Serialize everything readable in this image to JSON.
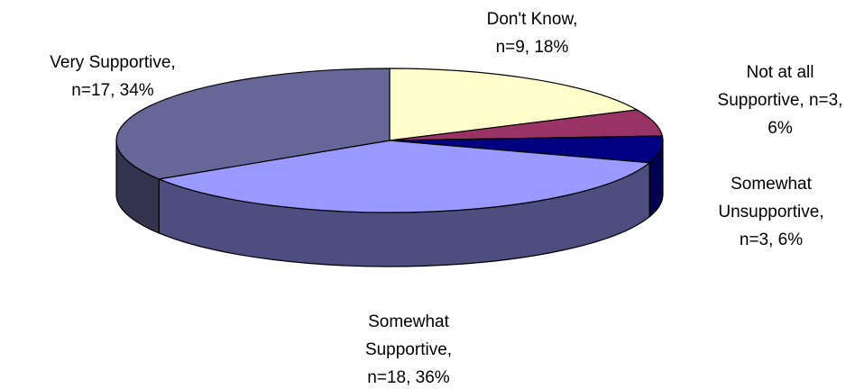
{
  "chart_data": {
    "type": "pie",
    "title": "",
    "slices": [
      {
        "label_lines": [
          "Don't Know,",
          "n=9, 18%"
        ],
        "n": 9,
        "percent": 18,
        "color": "#ffffcc",
        "side_color": "#cccc99"
      },
      {
        "label_lines": [
          "Not at all",
          "Supportive, n=3,",
          "6%"
        ],
        "n": 3,
        "percent": 6,
        "color": "#993366",
        "side_color": "#661f44"
      },
      {
        "label_lines": [
          "Somewhat",
          "Unsupportive,",
          "n=3, 6%"
        ],
        "n": 3,
        "percent": 6,
        "color": "#000080",
        "side_color": "#000050"
      },
      {
        "label_lines": [
          "Somewhat",
          "Supportive,",
          "n=18, 36%"
        ],
        "n": 18,
        "percent": 36,
        "color": "#9999ff",
        "side_color": "#4d4d80"
      },
      {
        "label_lines": [
          "Very Supportive,",
          "n=17, 34%"
        ],
        "n": 17,
        "percent": 34,
        "color": "#666699",
        "side_color": "#33334d"
      }
    ],
    "legend": "none",
    "style": "3d-pie"
  }
}
